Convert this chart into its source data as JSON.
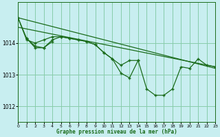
{
  "background_color": "#c8eef0",
  "plot_bg_color": "#c8eef0",
  "grid_color": "#88ccaa",
  "line_color": "#1a6b1a",
  "xlim": [
    0,
    23
  ],
  "ylim": [
    1011.5,
    1015.3
  ],
  "yticks": [
    1012,
    1013,
    1014
  ],
  "xticks": [
    0,
    1,
    2,
    3,
    4,
    5,
    6,
    7,
    8,
    9,
    10,
    11,
    12,
    13,
    14,
    15,
    16,
    17,
    18,
    19,
    20,
    21,
    22,
    23
  ],
  "xlabel": "Graphe pression niveau de la mer (hPa)",
  "series_main": [
    [
      0,
      1014.8
    ],
    [
      1,
      1014.15
    ],
    [
      2,
      1013.9
    ],
    [
      3,
      1013.85
    ],
    [
      4,
      1014.1
    ],
    [
      5,
      1014.2
    ],
    [
      6,
      1014.15
    ],
    [
      7,
      1014.1
    ],
    [
      8,
      1014.05
    ],
    [
      9,
      1013.95
    ],
    [
      10,
      1013.7
    ],
    [
      11,
      1013.5
    ],
    [
      12,
      1013.05
    ],
    [
      13,
      1012.9
    ],
    [
      14,
      1013.45
    ],
    [
      15,
      1012.55
    ],
    [
      16,
      1012.35
    ],
    [
      17,
      1012.35
    ],
    [
      18,
      1012.55
    ],
    [
      19,
      1013.25
    ],
    [
      20,
      1013.2
    ],
    [
      21,
      1013.5
    ],
    [
      22,
      1013.3
    ],
    [
      23,
      1013.25
    ]
  ],
  "series_extra1": [
    [
      0,
      1014.8
    ],
    [
      1,
      1014.1
    ],
    [
      2,
      1014.0
    ],
    [
      3,
      1014.1
    ],
    [
      4,
      1014.2
    ],
    [
      5,
      1014.2
    ],
    [
      6,
      1014.15
    ],
    [
      7,
      1014.1
    ],
    [
      8,
      1014.05
    ],
    [
      9,
      1013.95
    ],
    [
      10,
      1013.7
    ],
    [
      11,
      1013.5
    ],
    [
      12,
      1013.3
    ],
    [
      13,
      1013.45
    ],
    [
      14,
      1013.45
    ]
  ],
  "series_extra2": [
    [
      1,
      1014.15
    ],
    [
      2,
      1013.85
    ],
    [
      3,
      1013.85
    ],
    [
      4,
      1014.05
    ]
  ],
  "trend_line1": [
    [
      0,
      1014.8
    ],
    [
      23,
      1013.2
    ]
  ],
  "trend_line2": [
    [
      0,
      1014.5
    ],
    [
      23,
      1013.25
    ]
  ]
}
